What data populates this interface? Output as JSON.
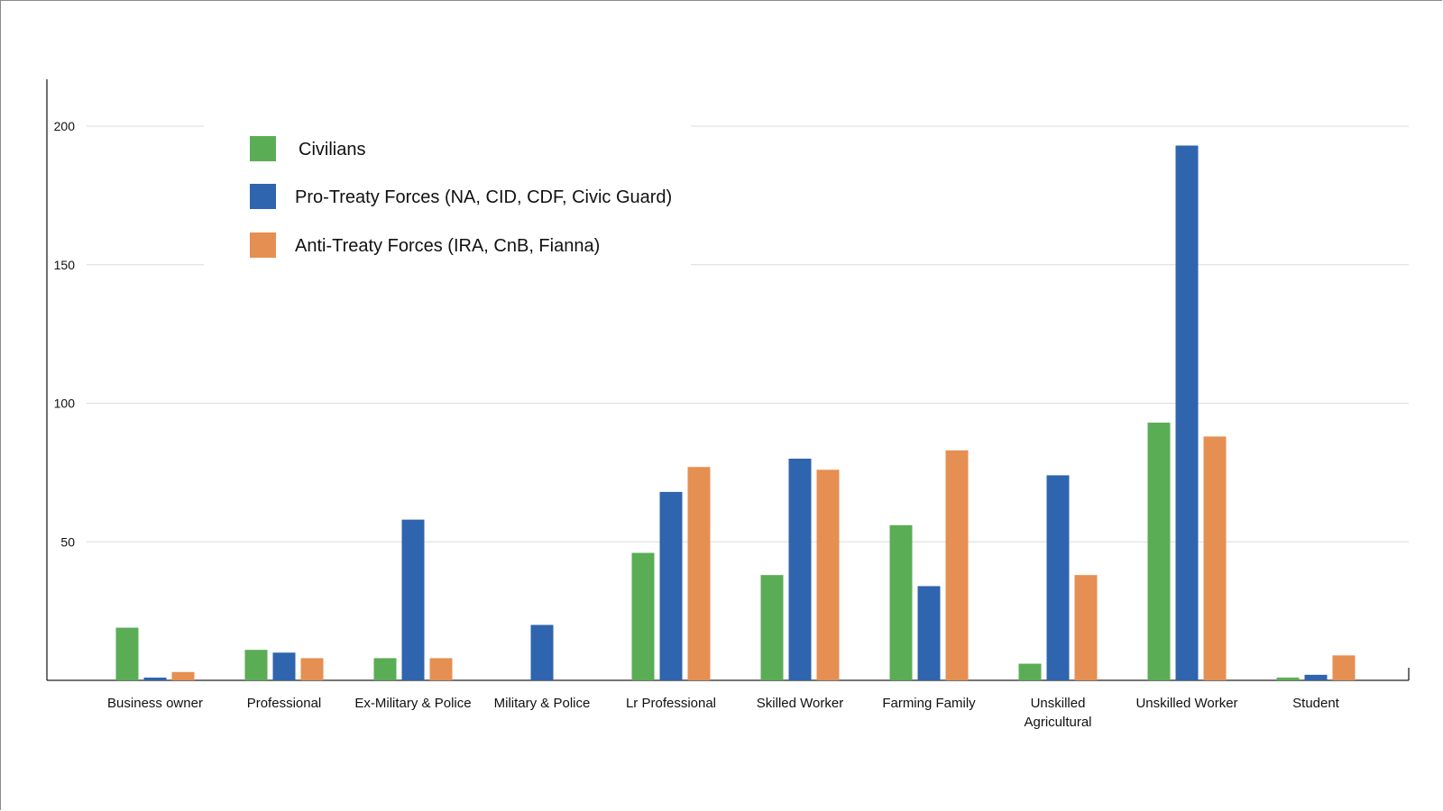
{
  "chart_data": {
    "type": "bar",
    "title": "",
    "xlabel": "",
    "ylabel": "",
    "ylim": [
      0,
      220
    ],
    "yticks": [
      50,
      100,
      150,
      200
    ],
    "grid": true,
    "legend_position": "top-left",
    "categories": [
      [
        "Business owner"
      ],
      [
        "Professional"
      ],
      [
        "Ex-Military & Police"
      ],
      [
        "Military & Police"
      ],
      [
        "Lr Professional"
      ],
      [
        "Skilled Worker"
      ],
      [
        "Farming Family"
      ],
      [
        "Unskilled",
        "Agricultural"
      ],
      [
        "Unskilled Worker"
      ],
      [
        "Student"
      ]
    ],
    "series": [
      {
        "name": "Civilians",
        "color": "#5aad55",
        "values": [
          19,
          11,
          8,
          0,
          46,
          38,
          56,
          6,
          93,
          1
        ]
      },
      {
        "name": "Pro-Treaty Forces (NA, CID, CDF, Civic Guard)",
        "color": "#2f64ae",
        "values": [
          1,
          10,
          58,
          20,
          68,
          80,
          34,
          74,
          193,
          2
        ]
      },
      {
        "name": "Anti-Treaty Forces (IRA, CnB, Fianna)",
        "color": "#e58f52",
        "values": [
          3,
          8,
          8,
          0,
          77,
          76,
          83,
          38,
          88,
          9
        ]
      }
    ]
  }
}
